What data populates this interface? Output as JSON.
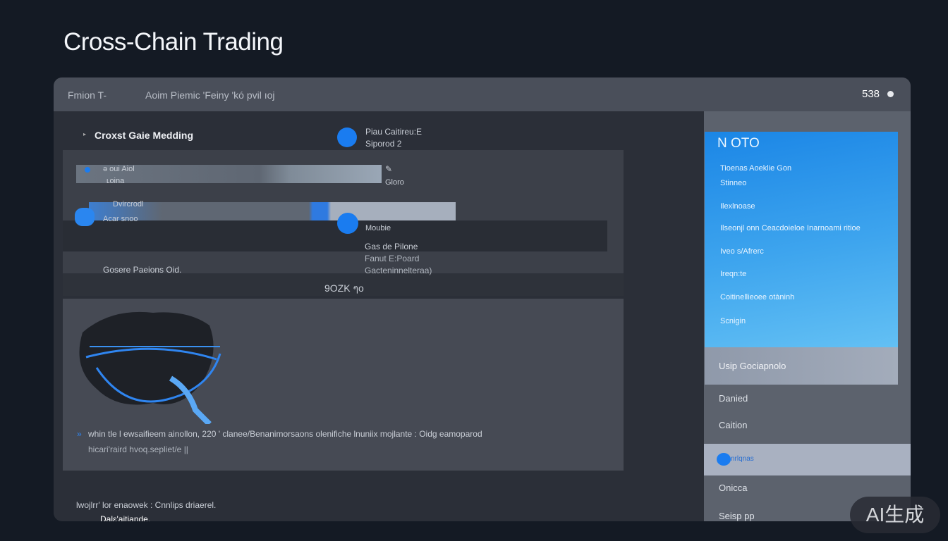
{
  "page_title": "Cross-Chain Trading",
  "header": {
    "left_label": "Fmion T-",
    "center_label": "Aoim Piemic 'Feiny 'kó pvil ıoj",
    "right_value": "538"
  },
  "main": {
    "heading": "Croxst Gaie Medding",
    "status": {
      "line1": "Piau Caitireu:E",
      "line2": "Siporod 2"
    },
    "rows": [
      {
        "label1": "ǝ oui Aiol",
        "label2": "ʟoina",
        "side": "Gloro"
      },
      {
        "label1": "Dvircrodl",
        "label2": "Acar snoo",
        "side": "Moubie"
      }
    ],
    "details": [
      "Gas de Pilone",
      "Fanut E:Poard",
      "Gacteninnelteraa)"
    ],
    "footer_label": "Gosere Paeions Oid.",
    "fee_value": "9OZK ๆo",
    "description_line1": "whin tle l ewsaifieem ainollon, 220  ' clanee/Benanimorsaons olenifiche lnuniix mojlante   : Oidg eamoparod",
    "description_line2": "hicari'raird hvoq.sepliet/e ||"
  },
  "bottom": {
    "line1": "lwojlrr' lor enaowek  : Cnnlips driaerel.",
    "line2": "Dalɛ'aitiande."
  },
  "sidebar": {
    "card_title": "N OTO",
    "card_items": [
      "Tioenas  Aoeklie Gon",
      "Stinneo",
      "Ilexlnoase",
      "Ilseonjl onn Ceacdoieloe Inarnoami ritioe",
      "Iveo s/Afrerc",
      "Ireqn:te",
      "Coitinellieoee otàninh",
      "Scnigin"
    ],
    "items": [
      "Usip Gociapnolo",
      "Danied",
      "Caition",
      "nrlqnas",
      "Onicca",
      "Seisp pp"
    ]
  },
  "watermark": "AI生成",
  "colors": {
    "accent": "#1a7cf0",
    "background": "#141a24",
    "card": "#2e95ec"
  }
}
